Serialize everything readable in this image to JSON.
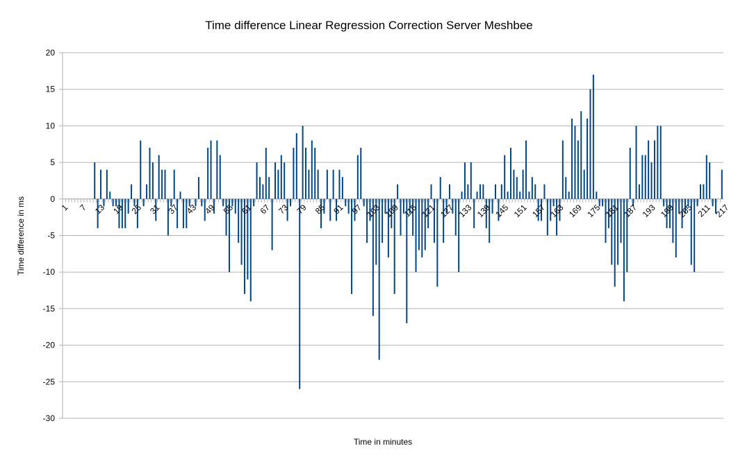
{
  "chart_data": {
    "type": "bar",
    "title": "Time difference Linear Regression Correction Server Meshbee",
    "xlabel": "Time in minutes",
    "ylabel": "Time difference in ms",
    "ylim": [
      -30,
      20
    ],
    "y_ticks": [
      20,
      15,
      10,
      5,
      0,
      -5,
      -10,
      -15,
      -20,
      -25,
      -30
    ],
    "x_tick_labels": [
      "1",
      "7",
      "13",
      "19",
      "25",
      "31",
      "37",
      "43",
      "49",
      "55",
      "61",
      "67",
      "73",
      "79",
      "85",
      "91",
      "97",
      "103",
      "109",
      "115",
      "121",
      "127",
      "133",
      "139",
      "145",
      "151",
      "157",
      "163",
      "169",
      "175",
      "181",
      "187",
      "193",
      "199",
      "205",
      "211",
      "217"
    ],
    "grid": "horizontal",
    "bar_color": "#004586",
    "x_start": 1,
    "values": [
      0,
      0,
      0,
      0,
      0,
      0,
      0,
      0,
      0,
      0,
      5,
      -4,
      4,
      -1,
      4,
      1,
      -1,
      -1,
      -4,
      -4,
      -4,
      -2,
      2,
      -1,
      -4,
      8,
      -1,
      2,
      7,
      5,
      -3,
      6,
      4,
      4,
      -5,
      -1,
      4,
      -4,
      1,
      -4,
      -4,
      -1,
      0,
      -1,
      3,
      -1,
      -3,
      7,
      8,
      -2,
      8,
      6,
      -1,
      -5,
      -10,
      -1,
      -2,
      -6,
      -9,
      -13,
      -11,
      -14,
      -1,
      5,
      3,
      2,
      7,
      3,
      -7,
      5,
      4,
      6,
      5,
      -3,
      -1,
      7,
      9,
      -26,
      10,
      7,
      4,
      8,
      7,
      4,
      -4,
      -2,
      4,
      -3,
      4,
      -3,
      4,
      3,
      -1,
      -2,
      -13,
      -3,
      6,
      7,
      -1,
      -6,
      -3,
      -16,
      -9,
      -22,
      -6,
      -2,
      -8,
      -4,
      -13,
      2,
      -5,
      -2,
      -17,
      -2,
      -5,
      -10,
      -7,
      -8,
      -7,
      -4,
      2,
      -6,
      -12,
      3,
      -6,
      -2,
      2,
      -2,
      -5,
      -10,
      1,
      5,
      2,
      5,
      -4,
      1,
      2,
      2,
      -4,
      -6,
      -2,
      2,
      -3,
      2,
      6,
      1,
      7,
      4,
      3,
      1,
      4,
      8,
      1,
      3,
      2,
      -3,
      -3,
      2,
      -5,
      -3,
      -1,
      -5,
      -3,
      8,
      3,
      1,
      11,
      10,
      8,
      12,
      4,
      11,
      15,
      17,
      1,
      -1,
      -1,
      -6,
      -4,
      -9,
      -12,
      -9,
      -6,
      -14,
      -10,
      7,
      -1,
      10,
      2,
      6,
      6,
      8,
      5,
      8,
      10,
      10,
      -1,
      -4,
      -4,
      -6,
      -8,
      -2,
      -4,
      -2,
      -1,
      -9,
      -10,
      -1,
      2,
      2,
      6,
      5,
      -1,
      -2,
      0,
      4
    ]
  }
}
